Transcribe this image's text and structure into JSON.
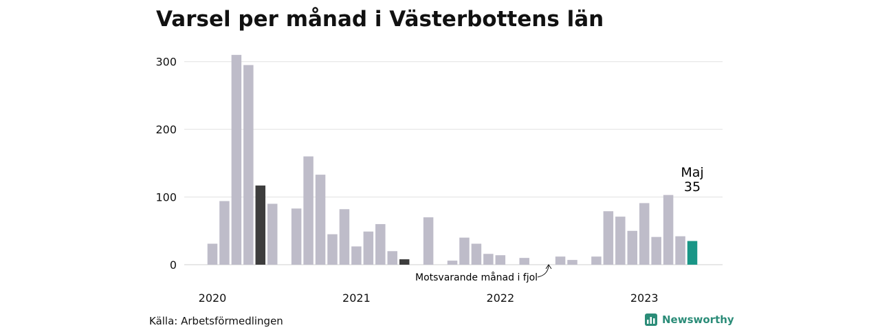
{
  "chart_data": {
    "type": "bar",
    "title": "Varsel per månad i Västerbottens län",
    "ylim": [
      0,
      320
    ],
    "yticks": [
      0,
      100,
      200,
      300
    ],
    "xticks": [
      "2020",
      "2021",
      "2022",
      "2023"
    ],
    "grid": true,
    "colors": {
      "default": "#bebcc9",
      "highlight_prev_year": "#3d3d3d",
      "current": "#1a9687"
    },
    "months": [
      "2020-01",
      "2020-02",
      "2020-03",
      "2020-04",
      "2020-05",
      "2020-06",
      "2020-07",
      "2020-08",
      "2020-09",
      "2020-10",
      "2020-11",
      "2020-12",
      "2021-01",
      "2021-02",
      "2021-03",
      "2021-04",
      "2021-05",
      "2021-06",
      "2021-07",
      "2021-08",
      "2021-09",
      "2021-10",
      "2021-11",
      "2021-12",
      "2022-01",
      "2022-02",
      "2022-03",
      "2022-04",
      "2022-05",
      "2022-06",
      "2022-07",
      "2022-08",
      "2022-09",
      "2022-10",
      "2022-11",
      "2022-12",
      "2023-01",
      "2023-02",
      "2023-03",
      "2023-04",
      "2023-05"
    ],
    "values": [
      31,
      94,
      310,
      295,
      117,
      90,
      0,
      83,
      160,
      133,
      45,
      82,
      27,
      49,
      60,
      20,
      8,
      0,
      70,
      0,
      6,
      40,
      31,
      16,
      14,
      0,
      10,
      0,
      0,
      12,
      7,
      0,
      12,
      79,
      71,
      50,
      91,
      41,
      103,
      42,
      35
    ],
    "highlight": [
      {
        "month": "2020-05",
        "role": "prev_year"
      },
      {
        "month": "2021-05",
        "role": "prev_year"
      },
      {
        "month": "2023-05",
        "role": "current"
      }
    ],
    "annotations": {
      "current_month_label": "Maj",
      "current_value_label": "35",
      "prev_year_note": "Motsvarande månad i fjol"
    }
  },
  "footer": {
    "source": "Källa: Arbetsförmedlingen",
    "brand": "Newsworthy"
  }
}
